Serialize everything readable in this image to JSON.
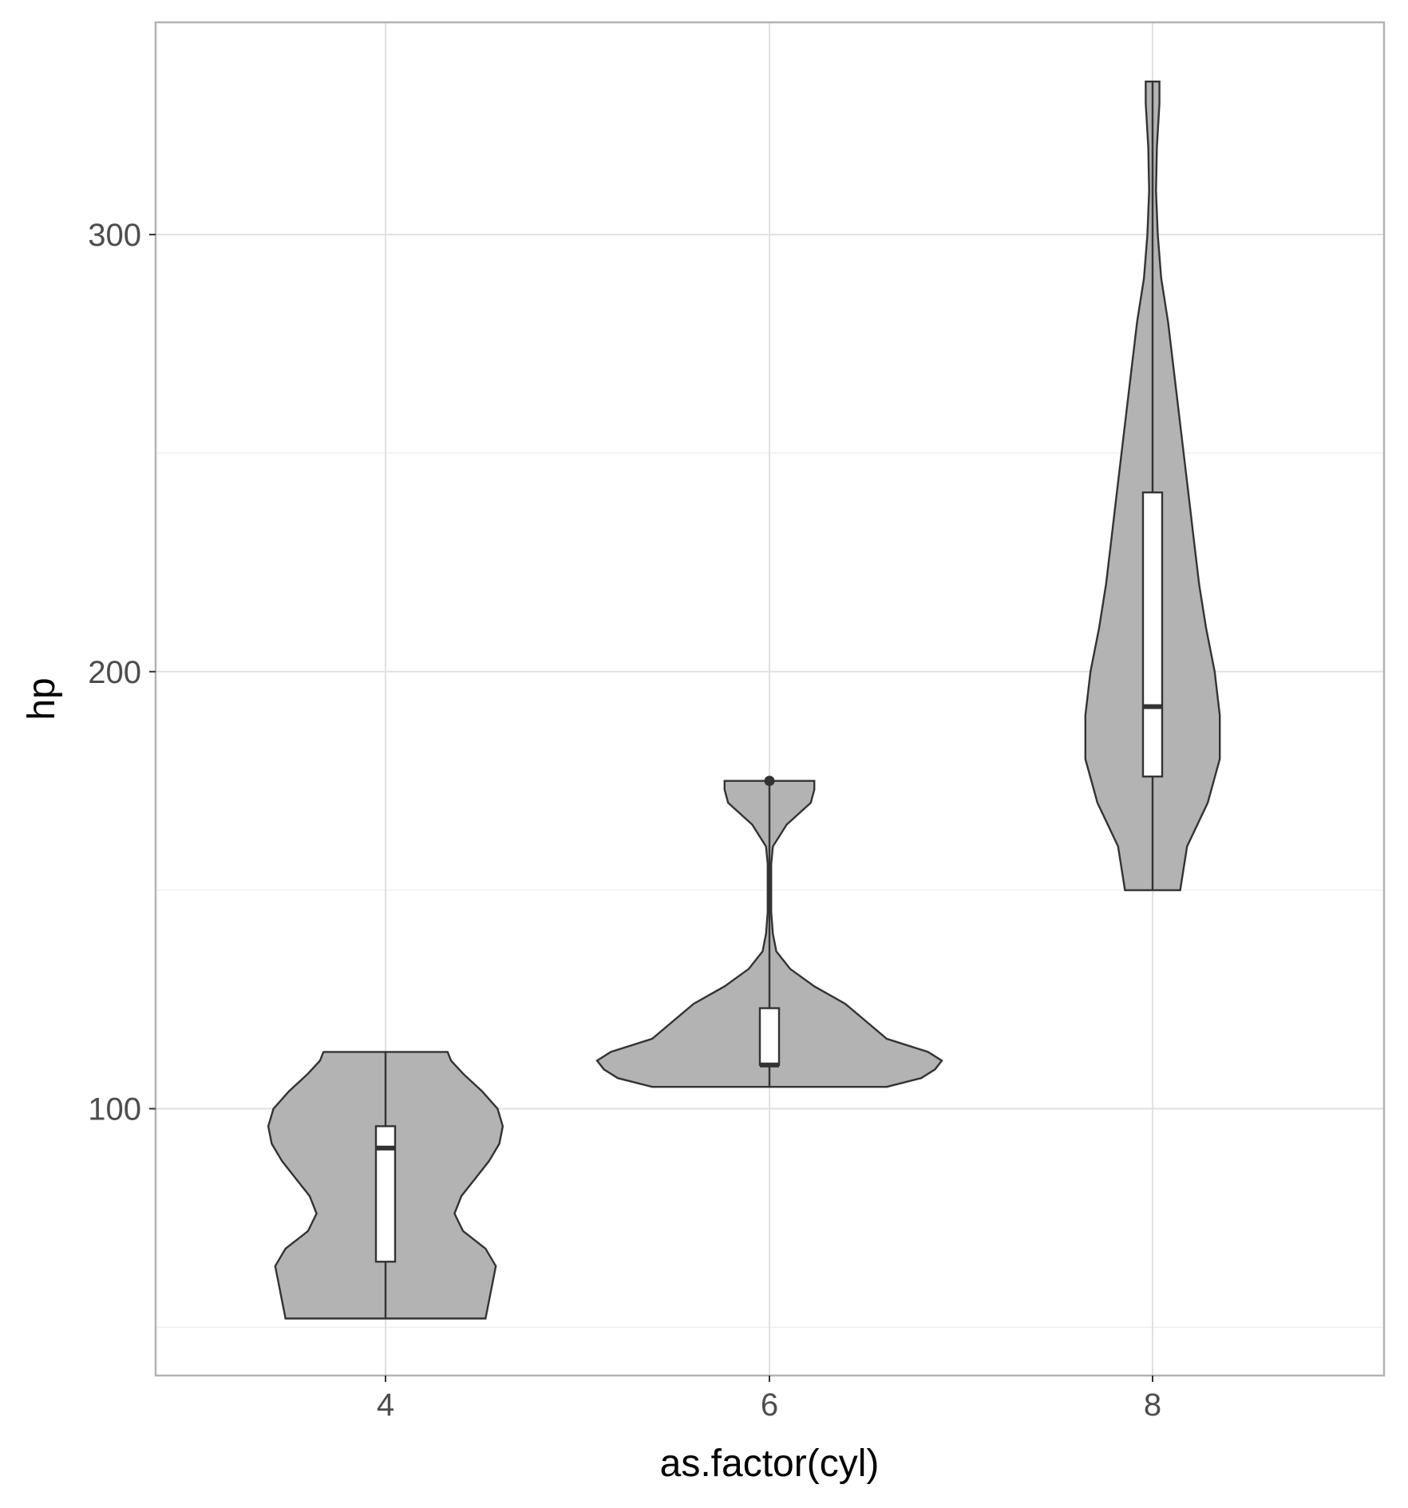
{
  "chart_data": {
    "type": "violin",
    "xlabel": "as.factor(cyl)",
    "ylabel": "hp",
    "categories": [
      "4",
      "6",
      "8"
    ],
    "ylim": [
      38.95,
      348.55
    ],
    "yticks": [
      100,
      200,
      300
    ],
    "xtick_labels": [
      "4",
      "6",
      "8"
    ],
    "ytick_labels": [
      "100",
      "200",
      "300"
    ],
    "grid": true,
    "legend": "none",
    "colors": {
      "violin_fill": "#b3b3b3",
      "outline": "#333333",
      "box_fill": "#ffffff",
      "grid_major": "#dedede",
      "grid_minor": "#ebebeb",
      "panel_border": "#b3b3b3"
    },
    "groups": [
      {
        "category": "4",
        "min": 52,
        "q1": 65,
        "median": 91,
        "q3": 96,
        "max": 113,
        "outliers": [],
        "density": [
          [
            52,
            0.58
          ],
          [
            56,
            0.6
          ],
          [
            60,
            0.62
          ],
          [
            64,
            0.64
          ],
          [
            68,
            0.58
          ],
          [
            72,
            0.45
          ],
          [
            76,
            0.4
          ],
          [
            80,
            0.44
          ],
          [
            84,
            0.52
          ],
          [
            88,
            0.6
          ],
          [
            92,
            0.66
          ],
          [
            96,
            0.68
          ],
          [
            100,
            0.65
          ],
          [
            104,
            0.56
          ],
          [
            108,
            0.45
          ],
          [
            111,
            0.38
          ],
          [
            113,
            0.36
          ]
        ]
      },
      {
        "category": "6",
        "min": 105,
        "q1": 110,
        "median": 110,
        "q3": 123,
        "max": 175,
        "outliers": [
          175
        ],
        "density": [
          [
            105,
            0.68
          ],
          [
            107,
            0.88
          ],
          [
            109,
            0.96
          ],
          [
            111,
            1.0
          ],
          [
            113,
            0.92
          ],
          [
            116,
            0.68
          ],
          [
            120,
            0.56
          ],
          [
            124,
            0.44
          ],
          [
            128,
            0.26
          ],
          [
            132,
            0.12
          ],
          [
            136,
            0.04
          ],
          [
            140,
            0.02
          ],
          [
            145,
            0.01
          ],
          [
            150,
            0.01
          ],
          [
            156,
            0.01
          ],
          [
            160,
            0.02
          ],
          [
            165,
            0.1
          ],
          [
            170,
            0.24
          ],
          [
            173,
            0.26
          ],
          [
            175,
            0.26
          ]
        ]
      },
      {
        "category": "8",
        "min": 150,
        "q1": 176,
        "median": 192,
        "q3": 241,
        "max": 335,
        "outliers": [],
        "density": [
          [
            150,
            0.16
          ],
          [
            160,
            0.2
          ],
          [
            170,
            0.32
          ],
          [
            180,
            0.39
          ],
          [
            190,
            0.39
          ],
          [
            200,
            0.36
          ],
          [
            210,
            0.31
          ],
          [
            220,
            0.27
          ],
          [
            230,
            0.24
          ],
          [
            240,
            0.21
          ],
          [
            250,
            0.18
          ],
          [
            260,
            0.15
          ],
          [
            270,
            0.12
          ],
          [
            280,
            0.09
          ],
          [
            290,
            0.05
          ],
          [
            300,
            0.03
          ],
          [
            310,
            0.02
          ],
          [
            320,
            0.025
          ],
          [
            330,
            0.04
          ],
          [
            335,
            0.04
          ]
        ]
      }
    ]
  }
}
